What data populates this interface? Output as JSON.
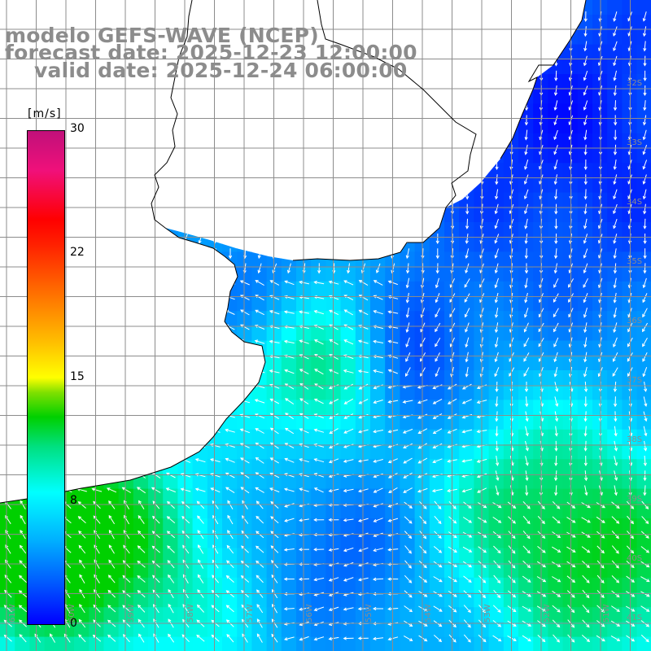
{
  "title": {
    "line1": "modelo GEFS-WAVE (NCEP)",
    "line2": "forecast date: 2025-12-23 12:00:00",
    "line3": "valid date: 2025-12-24 06:00:00"
  },
  "colorbar": {
    "unit": "[m/s]",
    "ticks": [
      "30",
      "22",
      "15",
      "8",
      "0"
    ],
    "min": 0,
    "max": 30,
    "colors": [
      "#0000ff",
      "#00b0ff",
      "#00ffff",
      "#00d000",
      "#ffff00",
      "#ff7000",
      "#ff0000",
      "#c0107a"
    ]
  },
  "map": {
    "variable": "wind speed and direction",
    "lat_labels": [
      "32S",
      "33S",
      "34S",
      "35S",
      "36S",
      "37S",
      "38S",
      "39S",
      "40S",
      "41S"
    ],
    "lon_labels": [
      "61W",
      "60W",
      "59W",
      "58W",
      "57W",
      "56W",
      "55W",
      "54W",
      "53W",
      "52W",
      "51W",
      "50W"
    ],
    "lat_range": [
      -41.5,
      -31.3
    ],
    "lon_range": [
      -61.1,
      -50.1
    ],
    "land_color": "#ffffff",
    "grid_color": "#8c8c8c"
  }
}
